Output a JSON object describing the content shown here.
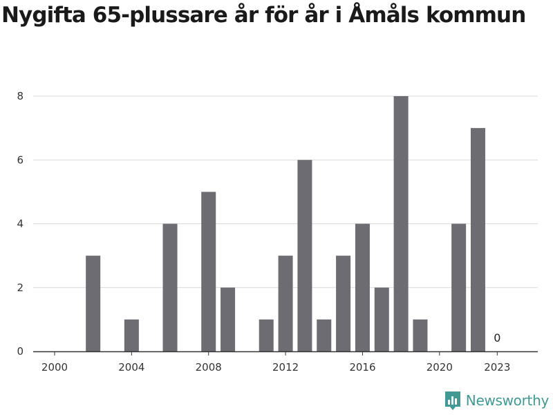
{
  "brand": {
    "name": "Newsworthy",
    "color": "#3f9a93",
    "icon": "bar-chart-speech-bubble-icon"
  },
  "chart_data": {
    "type": "bar",
    "title": "Nygifta 65-plussare år för år i Åmåls kommun",
    "xlabel": "",
    "ylabel": "",
    "ylim": [
      0,
      8
    ],
    "grid": true,
    "bar_color": "#6d6c72",
    "categories": [
      "2000",
      "2001",
      "2002",
      "2003",
      "2004",
      "2005",
      "2006",
      "2007",
      "2008",
      "2009",
      "2010",
      "2011",
      "2012",
      "2013",
      "2014",
      "2015",
      "2016",
      "2017",
      "2018",
      "2019",
      "2020",
      "2021",
      "2022",
      "2023"
    ],
    "values": [
      0,
      0,
      3,
      0,
      1,
      0,
      4,
      0,
      5,
      2,
      0,
      1,
      3,
      6,
      1,
      3,
      4,
      2,
      8,
      1,
      0,
      4,
      7,
      0
    ],
    "x_tick_labels": [
      "2000",
      "2004",
      "2008",
      "2012",
      "2016",
      "2020",
      "2023"
    ],
    "y_tick_labels": [
      "0",
      "2",
      "4",
      "6",
      "8"
    ],
    "annotations": [
      {
        "category": "2023",
        "text": "0"
      }
    ]
  }
}
